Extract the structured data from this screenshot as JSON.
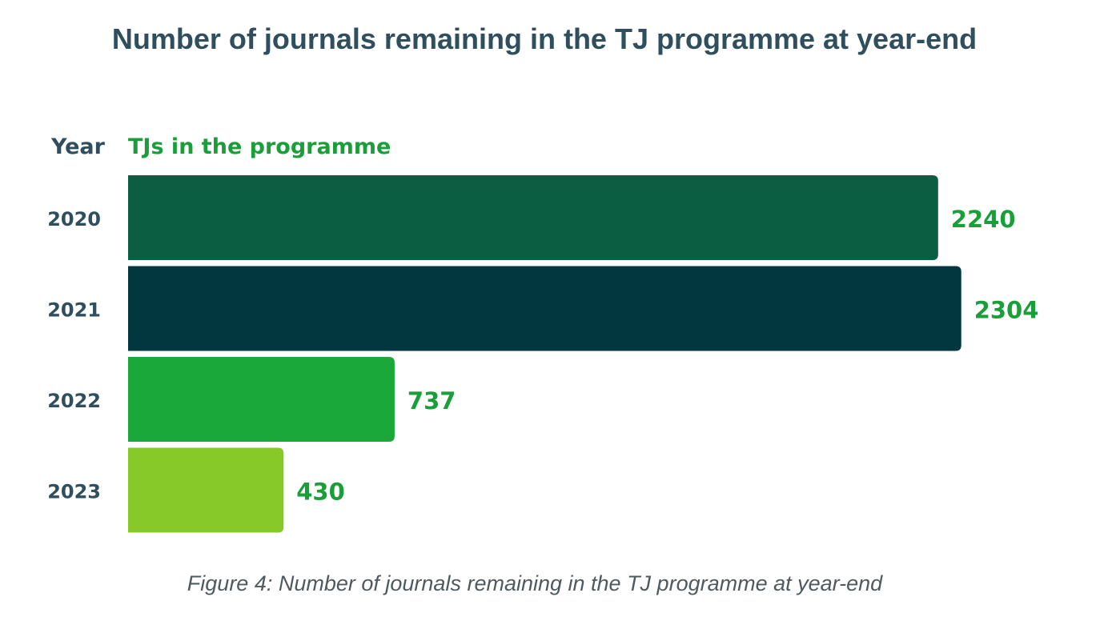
{
  "chart": {
    "title": "Number of journals remaining in the TJ programme at year-end",
    "caption": "Figure 4: Number of journals remaining in the TJ programme at year-end"
  },
  "chart_data": {
    "type": "bar",
    "orientation": "horizontal",
    "title": "Number of journals remaining in the TJ programme at year-end",
    "category_header": "Year",
    "value_header": "TJs in the programme",
    "categories": [
      "2020",
      "2021",
      "2022",
      "2023"
    ],
    "values": [
      2240,
      2304,
      737,
      430
    ],
    "value_labels": [
      "2240",
      "2304",
      "737",
      "430"
    ],
    "colors": [
      "#0b5e41",
      "#033740",
      "#1aa83a",
      "#86c928"
    ],
    "label_color": "#1a9e3a",
    "category_label_color": "#2f4f5f",
    "grid": false,
    "legend": "none"
  }
}
